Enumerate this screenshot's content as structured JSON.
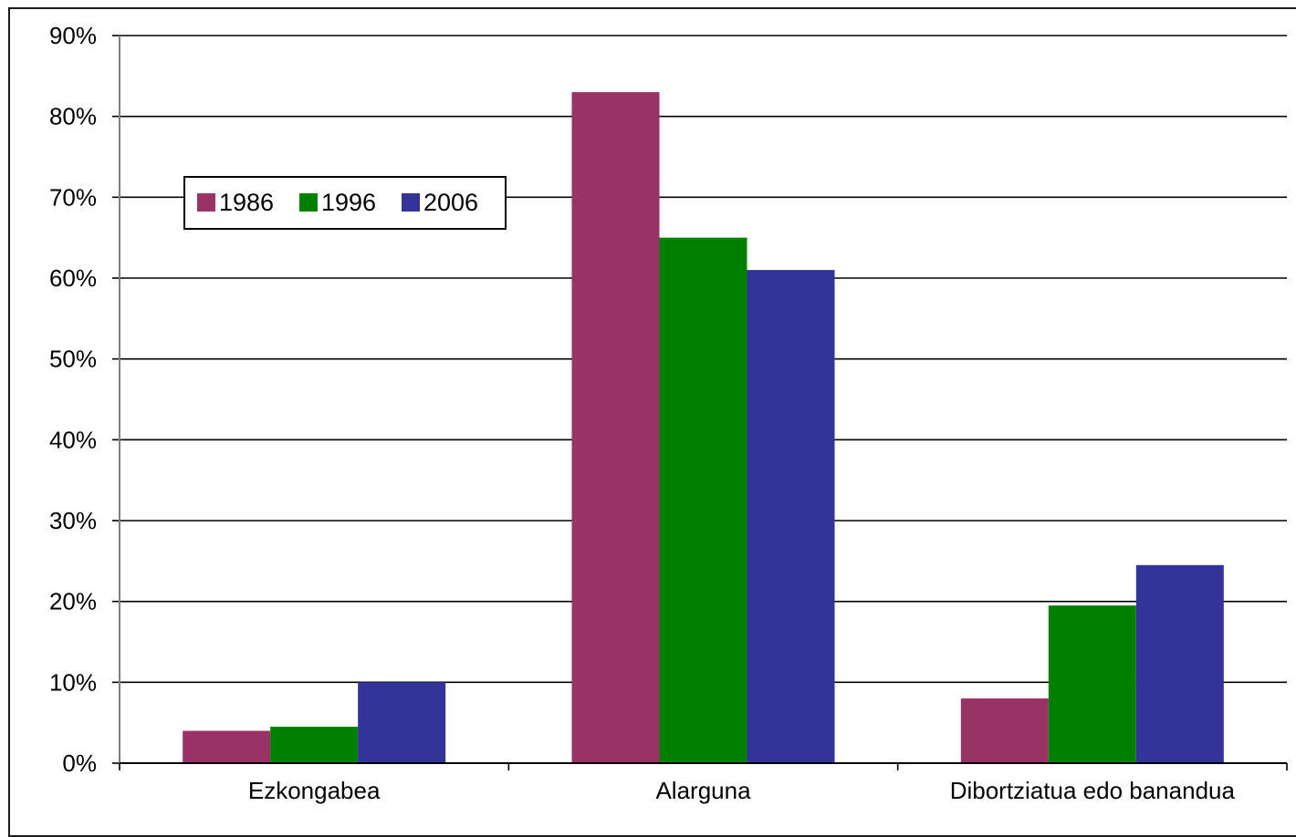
{
  "chart_data": {
    "type": "bar",
    "title": "",
    "xlabel": "",
    "ylabel": "",
    "categories": [
      "Ezkongabea",
      "Alarguna",
      "Dibortziatua edo banandua"
    ],
    "series": [
      {
        "name": "1986",
        "color": "#993366",
        "values": [
          4,
          83,
          8
        ]
      },
      {
        "name": "1996",
        "color": "#008000",
        "values": [
          4.5,
          65,
          19.5
        ]
      },
      {
        "name": "2006",
        "color": "#333399",
        "values": [
          10,
          61,
          24.5
        ]
      }
    ],
    "ylim": [
      0,
      90
    ],
    "yticks": [
      0,
      10,
      20,
      30,
      40,
      50,
      60,
      70,
      80,
      90
    ],
    "ytick_labels": [
      "0%",
      "10%",
      "20%",
      "30%",
      "40%",
      "50%",
      "60%",
      "70%",
      "80%",
      "90%"
    ],
    "grid": true,
    "legend_position": "top-left"
  }
}
